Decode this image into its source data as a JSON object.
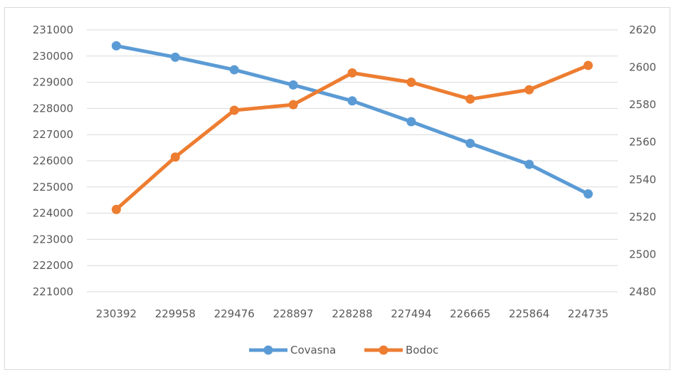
{
  "chart_data": {
    "type": "line",
    "title": "",
    "xlabel": "",
    "ylabel": "",
    "categories": [
      "230392",
      "229958",
      "229476",
      "228897",
      "228288",
      "227494",
      "226665",
      "225864",
      "224735"
    ],
    "y_left": {
      "min": 221000,
      "max": 231000,
      "step": 1000
    },
    "y_right": {
      "min": 2480,
      "max": 2620,
      "step": 20
    },
    "grid": true,
    "legend_position": "bottom",
    "series": [
      {
        "name": "Covasna",
        "axis": "left",
        "color": "#5B9BD5",
        "values": [
          230392,
          229958,
          229476,
          228897,
          228288,
          227494,
          226665,
          225864,
          224735
        ]
      },
      {
        "name": "Bodoc",
        "axis": "right",
        "color": "#ED7D31",
        "values": [
          2524,
          2552,
          2577,
          2580,
          2597,
          2592,
          2583,
          2588,
          2601
        ]
      }
    ]
  }
}
